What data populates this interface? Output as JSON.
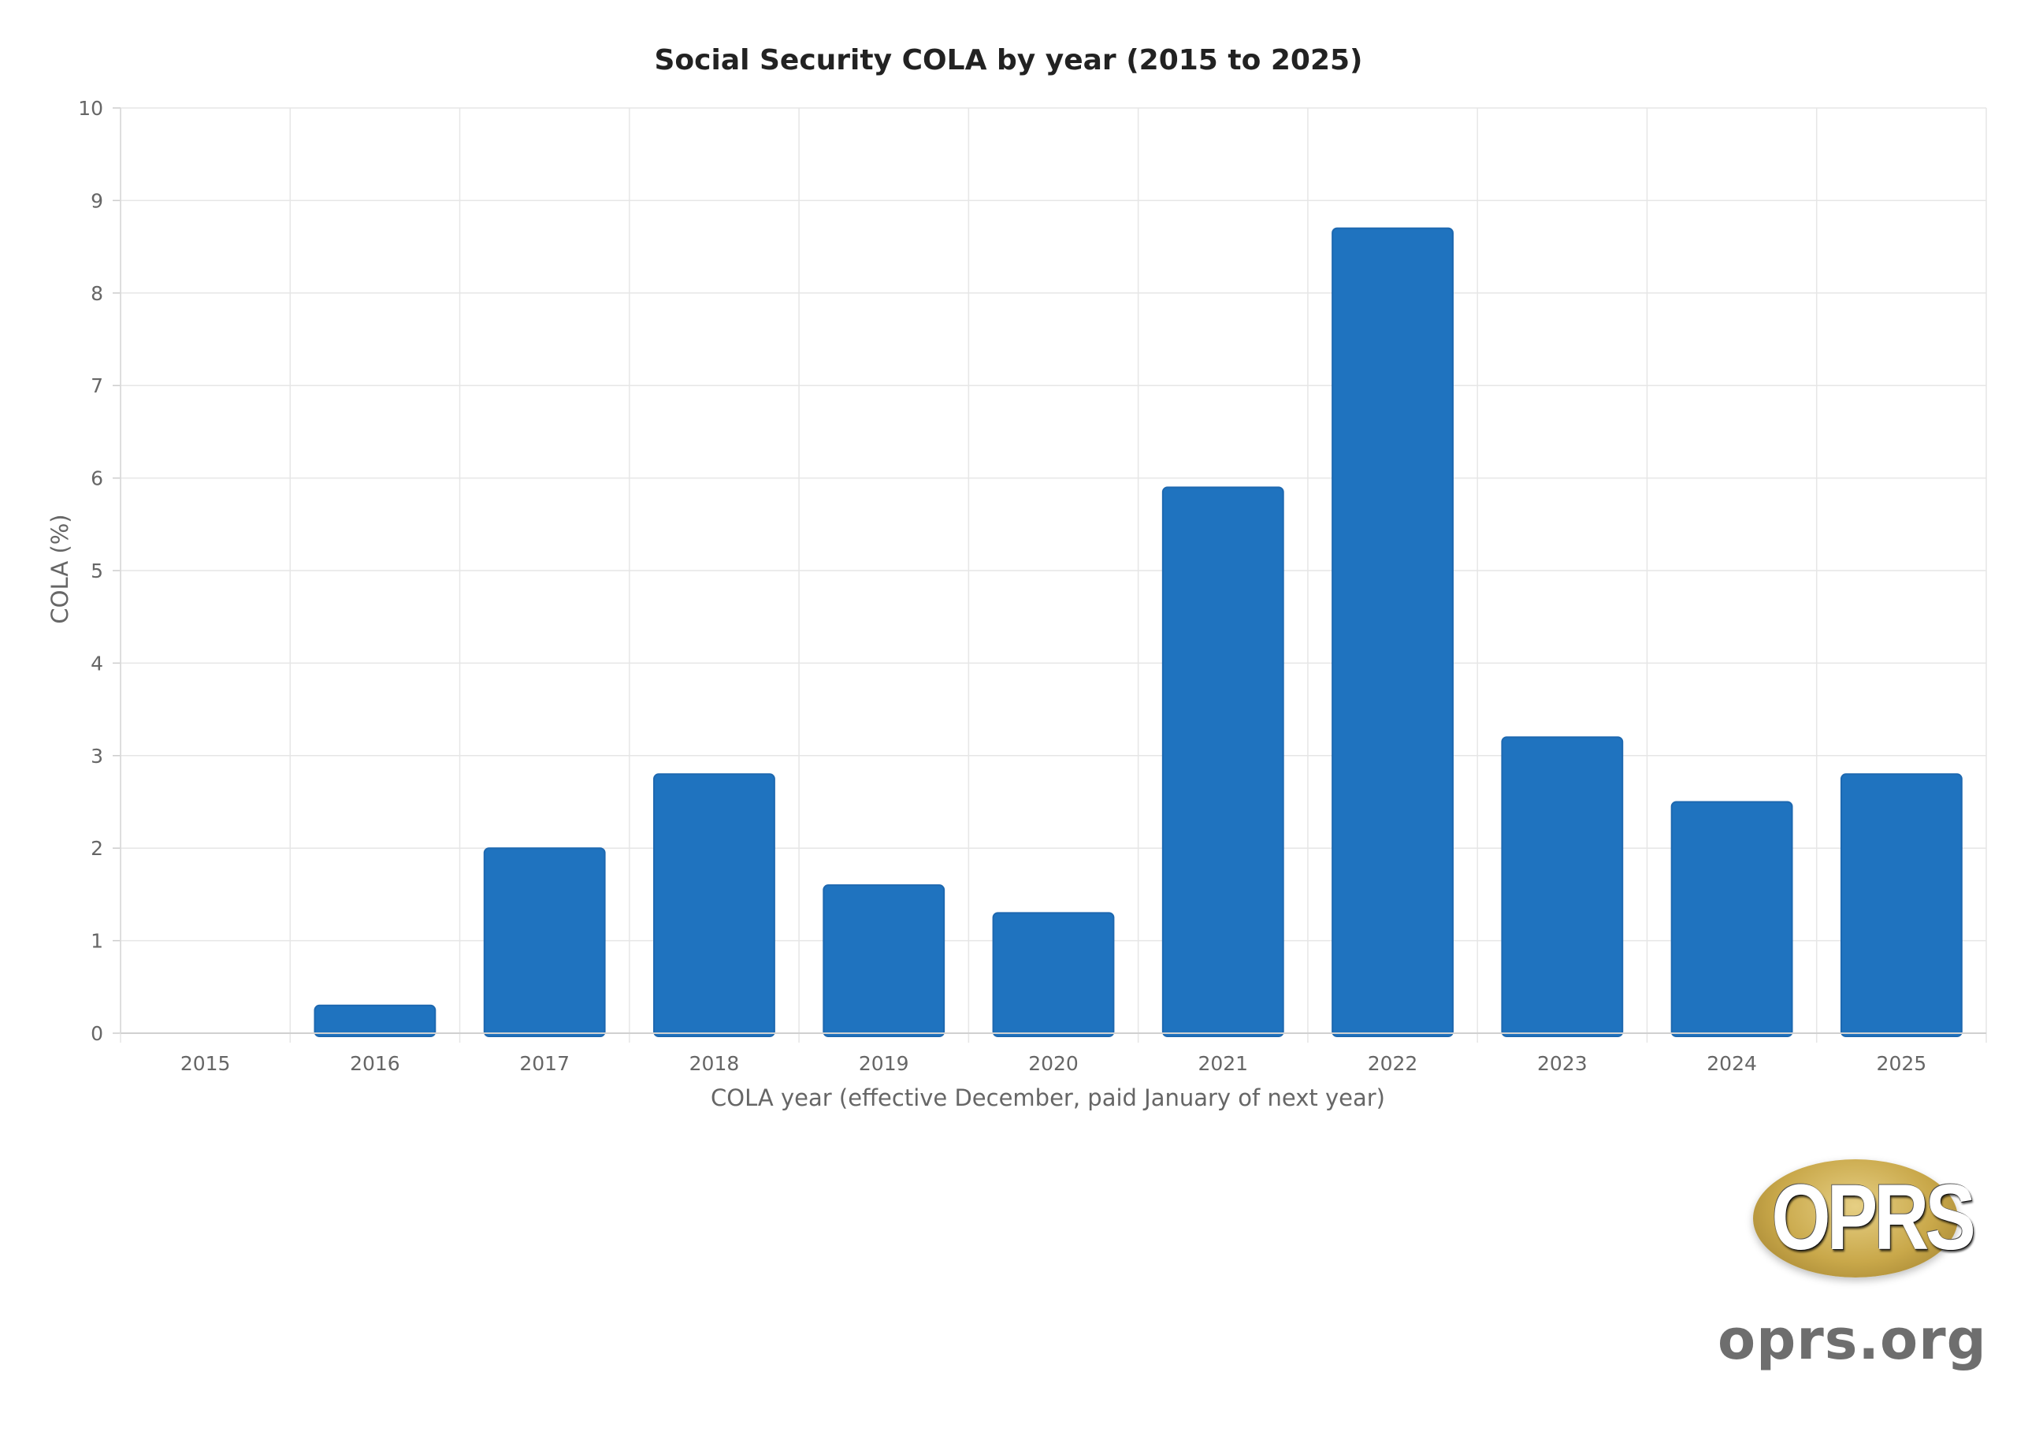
{
  "chart_data": {
    "type": "bar",
    "title": "Social Security COLA by year (2015 to 2025)",
    "xlabel": "COLA year (effective December, paid January of next year)",
    "ylabel": "COLA (%)",
    "categories": [
      "2015",
      "2016",
      "2017",
      "2018",
      "2019",
      "2020",
      "2021",
      "2022",
      "2023",
      "2024",
      "2025"
    ],
    "values": [
      0,
      0.3,
      2.0,
      2.8,
      1.6,
      1.3,
      5.9,
      8.7,
      3.2,
      2.5,
      2.8
    ],
    "ylim": [
      0,
      10
    ],
    "yticks": [
      "0",
      "1",
      "2",
      "3",
      "4",
      "5",
      "6",
      "7",
      "8",
      "9",
      "10"
    ],
    "grid": true,
    "bar_color": "#1f73bf",
    "bar_edge_color": "#1d68b0",
    "grid_color": "#e6e6e6"
  },
  "logo": {
    "word": "OPRS",
    "domain": "oprs.org"
  }
}
